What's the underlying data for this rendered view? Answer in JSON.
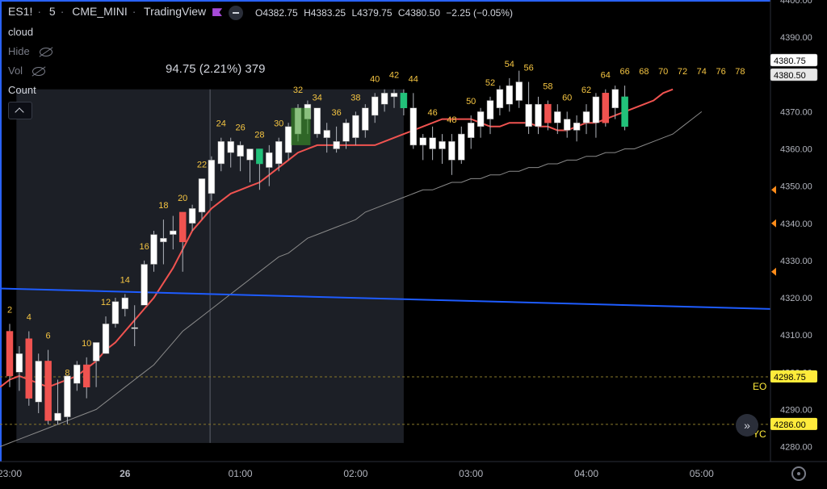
{
  "header": {
    "symbol": "ES1!",
    "interval": "5",
    "exchange": "CME_MINI",
    "source": "TradingView",
    "ohlc": {
      "open": "O4382.75",
      "high": "H4383.25",
      "low": "L4379.75",
      "close": "C4380.50",
      "change": "−2.25 (−0.05%)"
    }
  },
  "legend": {
    "items": [
      {
        "label": "cloud"
      },
      {
        "label": "Hide"
      },
      {
        "label": "Vol"
      },
      {
        "label": "Count"
      }
    ]
  },
  "colors": {
    "up": "#ffffff",
    "down": "#f05350",
    "highlight_up": "#22c17a",
    "ema": "#f05350",
    "sma": "#8a8a8a",
    "trend": "#1e5cff",
    "label": "#f5c542",
    "measure_box": "#1c1f26"
  },
  "chart_data": {
    "type": "candlestick",
    "title": "",
    "x_ticks": [
      {
        "label": "23:00",
        "index": 0
      },
      {
        "label": "26",
        "index": 12
      },
      {
        "label": "01:00",
        "index": 24
      },
      {
        "label": "02:00",
        "index": 36
      },
      {
        "label": "03:00",
        "index": 48
      },
      {
        "label": "04:00",
        "index": 60
      },
      {
        "label": "05:00",
        "index": 72
      }
    ],
    "y_ticks": [
      4280,
      4290,
      4300,
      4310,
      4320,
      4330,
      4340,
      4350,
      4360,
      4370,
      4380,
      4390,
      4400
    ],
    "ylim": [
      4276,
      4400
    ],
    "x_first": "22:35",
    "candles": [
      [
        4313,
        4296,
        4311,
        4299,
        "down"
      ],
      [
        4307,
        4295,
        4300,
        4305,
        "up"
      ],
      [
        4311,
        4291,
        4309,
        4293,
        "down"
      ],
      [
        4305,
        4289,
        4292,
        4303,
        "up"
      ],
      [
        4306,
        4286,
        4303,
        4287,
        "down"
      ],
      [
        4298,
        4286,
        4287,
        4289,
        "up"
      ],
      [
        4296,
        4286,
        4288,
        4299,
        "up"
      ],
      [
        4303,
        4295,
        4297,
        4302,
        "up"
      ],
      [
        4304,
        4293,
        4302,
        4296,
        "down"
      ],
      [
        4306,
        4296,
        4303,
        4308,
        "up"
      ],
      [
        4315,
        4305,
        4305,
        4313,
        "up"
      ],
      [
        4320,
        4312,
        4313,
        4319,
        "up"
      ],
      [
        4321,
        4315,
        4317,
        4320,
        "up"
      ],
      [
        4318,
        4307,
        4312,
        4312,
        "up"
      ],
      [
        4330,
        4318,
        4318,
        4329,
        "up"
      ],
      [
        4338,
        4327,
        4329,
        4337,
        "up"
      ],
      [
        4341,
        4329,
        4336,
        4335,
        "up"
      ],
      [
        4342,
        4333,
        4337,
        4338,
        "up"
      ],
      [
        4343,
        4327,
        4343,
        4335,
        "down"
      ],
      [
        4345,
        4338,
        4340,
        4344,
        "up"
      ],
      [
        4352,
        4341,
        4343,
        4352,
        "up"
      ],
      [
        4358,
        4346,
        4348,
        4357,
        "up"
      ],
      [
        4363,
        4354,
        4356,
        4362,
        "up"
      ],
      [
        4363,
        4355,
        4359,
        4362,
        "up"
      ],
      [
        4362,
        4354,
        4361,
        4358,
        "up"
      ],
      [
        4359,
        4351,
        4357,
        4360,
        "up"
      ],
      [
        4360,
        4349,
        4360,
        4356,
        "highlight"
      ],
      [
        4361,
        4350,
        4355,
        4359,
        "up"
      ],
      [
        4363,
        4354,
        4356,
        4362,
        "up"
      ],
      [
        4367,
        4357,
        4359,
        4366,
        "up"
      ],
      [
        4372,
        4362,
        4364,
        4371,
        "up"
      ],
      [
        4373,
        4364,
        4368,
        4372,
        "up"
      ],
      [
        4370,
        4363,
        4371,
        4364,
        "up"
      ],
      [
        4367,
        4359,
        4363,
        4365,
        "up"
      ],
      [
        4366,
        4359,
        4360,
        4362,
        "up"
      ],
      [
        4368,
        4360,
        4362,
        4367,
        "up"
      ],
      [
        4370,
        4361,
        4363,
        4369,
        "up"
      ],
      [
        4372,
        4363,
        4365,
        4371,
        "up"
      ],
      [
        4375,
        4367,
        4369,
        4374,
        "up"
      ],
      [
        4376,
        4370,
        4372,
        4375,
        "up"
      ],
      [
        4376,
        4371,
        4374,
        4375,
        "up"
      ],
      [
        4376,
        4369,
        4375,
        4371,
        "highlight"
      ],
      [
        4375,
        4360,
        4371,
        4361,
        "up"
      ],
      [
        4364,
        4357,
        4361,
        4363,
        "up"
      ],
      [
        4366,
        4357,
        4363,
        4360,
        "up"
      ],
      [
        4364,
        4356,
        4360,
        4362,
        "up"
      ],
      [
        4364,
        4353,
        4362,
        4357,
        "up"
      ],
      [
        4366,
        4356,
        4357,
        4364,
        "up"
      ],
      [
        4369,
        4360,
        4363,
        4367,
        "up"
      ],
      [
        4371,
        4363,
        4366,
        4370,
        "up"
      ],
      [
        4374,
        4364,
        4368,
        4373,
        "up"
      ],
      [
        4377,
        4369,
        4371,
        4376,
        "up"
      ],
      [
        4379,
        4370,
        4372,
        4377,
        "up"
      ],
      [
        4381,
        4371,
        4378,
        4373,
        "up"
      ],
      [
        4378,
        4364,
        4372,
        4366,
        "up"
      ],
      [
        4374,
        4364,
        4366,
        4372,
        "up"
      ],
      [
        4373,
        4365,
        4372,
        4367,
        "down"
      ],
      [
        4372,
        4364,
        4367,
        4370,
        "up"
      ],
      [
        4370,
        4363,
        4368,
        4365,
        "up"
      ],
      [
        4369,
        4362,
        4365,
        4367,
        "up"
      ],
      [
        4372,
        4364,
        4367,
        4370,
        "up"
      ],
      [
        4375,
        4363,
        4367,
        4374,
        "up"
      ],
      [
        4376,
        4366,
        4375,
        4367,
        "down"
      ],
      [
        4377,
        4368,
        4371,
        4376,
        "up"
      ],
      [
        4377,
        4365,
        4374,
        4366,
        "highlight"
      ]
    ],
    "bar_labels": [
      {
        "i": 0,
        "text": "2"
      },
      {
        "i": 2,
        "text": "4"
      },
      {
        "i": 4,
        "text": "6"
      },
      {
        "i": 6,
        "text": "8"
      },
      {
        "i": 8,
        "text": "10"
      },
      {
        "i": 10,
        "text": "12"
      },
      {
        "i": 12,
        "text": "14"
      },
      {
        "i": 14,
        "text": "16"
      },
      {
        "i": 16,
        "text": "18"
      },
      {
        "i": 18,
        "text": "20"
      },
      {
        "i": 20,
        "text": "22"
      },
      {
        "i": 22,
        "text": "24"
      },
      {
        "i": 24,
        "text": "26"
      },
      {
        "i": 26,
        "text": "28"
      },
      {
        "i": 28,
        "text": "30"
      },
      {
        "i": 30,
        "text": "32"
      },
      {
        "i": 32,
        "text": "34"
      },
      {
        "i": 34,
        "text": "36"
      },
      {
        "i": 36,
        "text": "38"
      },
      {
        "i": 38,
        "text": "40"
      },
      {
        "i": 40,
        "text": "42"
      },
      {
        "i": 42,
        "text": "44"
      },
      {
        "i": 44,
        "text": "46"
      },
      {
        "i": 46,
        "text": "48"
      },
      {
        "i": 48,
        "text": "50"
      },
      {
        "i": 50,
        "text": "52"
      },
      {
        "i": 52,
        "text": "54"
      },
      {
        "i": 54,
        "text": "56"
      },
      {
        "i": 56,
        "text": "58"
      },
      {
        "i": 58,
        "text": "60"
      },
      {
        "i": 60,
        "text": "62"
      },
      {
        "i": 62,
        "text": "64"
      },
      {
        "i": 64,
        "text": "66"
      },
      {
        "i": 66,
        "text": "68"
      },
      {
        "i": 68,
        "text": "70"
      },
      {
        "i": 70,
        "text": "72"
      },
      {
        "i": 72,
        "text": "74"
      },
      {
        "i": 74,
        "text": "76"
      },
      {
        "i": 76,
        "text": "78"
      }
    ],
    "ema": [
      4296,
      4298,
      4299,
      4298,
      4297,
      4296,
      4297,
      4298,
      4299,
      4301,
      4303,
      4306,
      4308,
      4311,
      4314,
      4317,
      4320,
      4324,
      4328,
      4333,
      4338,
      4341,
      4344,
      4346,
      4348,
      4349,
      4350,
      4351,
      4353,
      4355,
      4357,
      4359,
      4360,
      4361,
      4361,
      4361,
      4361,
      4361,
      4361,
      4361,
      4362,
      4363,
      4364,
      4365,
      4366,
      4367,
      4368,
      4368,
      4368,
      4368,
      4367,
      4366,
      4366,
      4367,
      4367,
      4367,
      4366,
      4366,
      4365,
      4365,
      4366,
      4367,
      4367,
      4368,
      4369,
      4370,
      4371,
      4372
    ],
    "sma": [
      4280,
      4281,
      4282,
      4283,
      4284,
      4285,
      4286,
      4287,
      4288,
      4289,
      4290,
      4292,
      4294,
      4296,
      4298,
      4300,
      4302,
      4305,
      4308,
      4311,
      4313,
      4315,
      4317,
      4319,
      4321,
      4323,
      4325,
      4327,
      4329,
      4331,
      4332,
      4334,
      4336,
      4337,
      4338,
      4339,
      4340,
      4341,
      4343,
      4344,
      4345,
      4346,
      4347,
      4348,
      4349,
      4349,
      4350,
      4351,
      4351,
      4352,
      4352,
      4353,
      4353,
      4354,
      4354,
      4355,
      4355,
      4356,
      4356,
      4357,
      4357,
      4358,
      4358,
      4359,
      4359,
      4360,
      4360,
      4361
    ],
    "trend_line": {
      "from": 4322.5,
      "to": 4317
    },
    "levels": [
      {
        "price": 4298.75,
        "label": "4298.75",
        "tag": "EO"
      },
      {
        "price": 4286.0,
        "label": "4286.00",
        "tag": "YC"
      }
    ],
    "current_prices": [
      {
        "price": 4380.75,
        "label": "4380.75"
      },
      {
        "price": 4380.5,
        "label": "4380.50"
      }
    ],
    "measure": {
      "text": "94.75 (2.21%) 379",
      "from_price": 4376,
      "to_price": 4281,
      "from_index": 1,
      "to_index": 33
    },
    "alert_prices": [
      4349,
      4340,
      4327
    ]
  },
  "icons": {
    "collapse": "chevron-up-icon",
    "scroll": "double-chevron-right-icon",
    "settings": "gear-icon"
  }
}
